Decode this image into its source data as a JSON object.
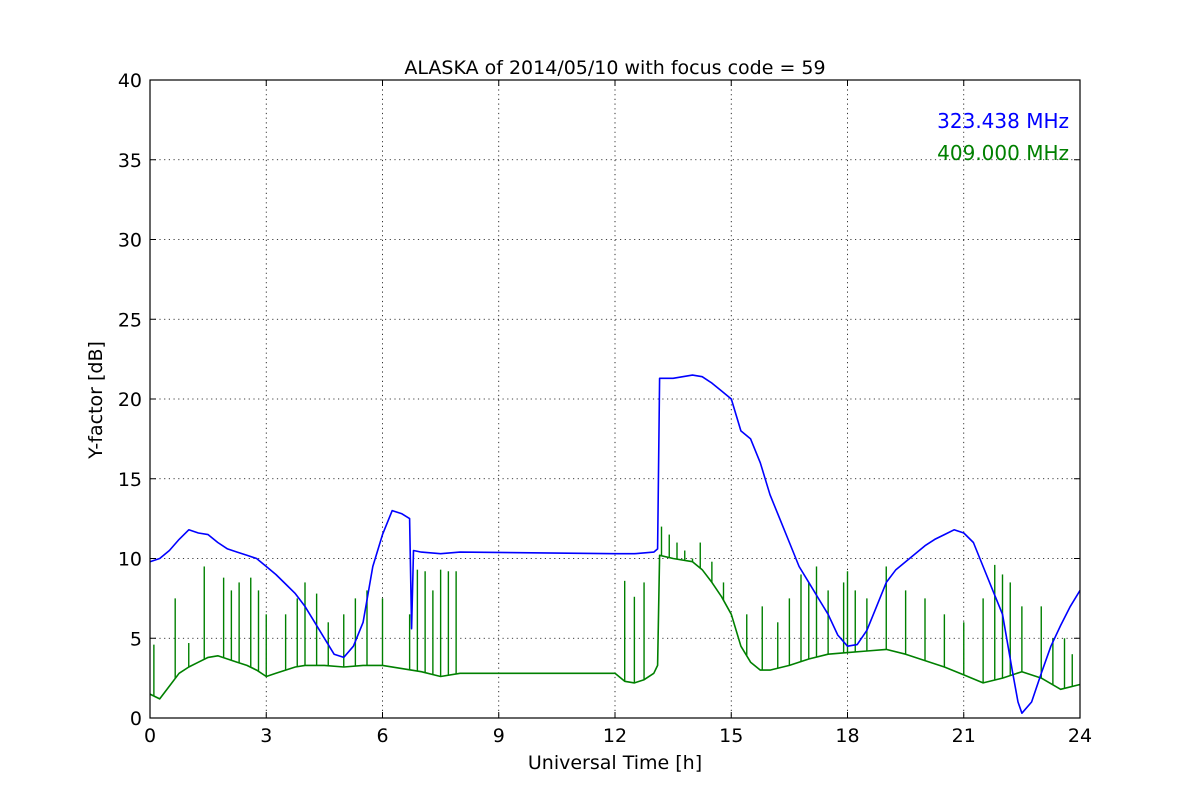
{
  "chart_data": {
    "type": "line",
    "title": "ALASKA of 2014/05/10 with focus code = 59",
    "xlabel": "Universal Time [h]",
    "ylabel": "Y-factor [dB]",
    "xlim": [
      0,
      24
    ],
    "ylim": [
      0,
      40
    ],
    "xticks": [
      0,
      3,
      6,
      9,
      12,
      15,
      18,
      21,
      24
    ],
    "xtick_labels": [
      "0",
      "3",
      "6",
      "9",
      "12",
      "15",
      "18",
      "21",
      "24"
    ],
    "yticks": [
      0,
      5,
      10,
      15,
      20,
      25,
      30,
      35,
      40
    ],
    "ytick_labels": [
      "0",
      "5",
      "10",
      "15",
      "20",
      "25",
      "30",
      "35",
      "40"
    ],
    "grid": true,
    "legend_position": "top-right",
    "series": [
      {
        "name": "323.438 MHz",
        "color": "#0000ff",
        "x": [
          0,
          0.25,
          0.5,
          0.75,
          1.0,
          1.25,
          1.5,
          1.75,
          2.0,
          2.25,
          2.5,
          2.75,
          3.0,
          3.25,
          3.5,
          3.75,
          4.0,
          4.25,
          4.5,
          4.75,
          5.0,
          5.25,
          5.5,
          5.75,
          6.0,
          6.25,
          6.5,
          6.7,
          6.75,
          6.8,
          7.0,
          7.5,
          8.0,
          12.0,
          12.5,
          13.0,
          13.1,
          13.15,
          13.5,
          14.0,
          14.25,
          14.5,
          14.75,
          15.0,
          15.25,
          15.5,
          15.75,
          16.0,
          16.25,
          16.5,
          16.75,
          17.0,
          17.25,
          17.5,
          17.75,
          18.0,
          18.25,
          18.5,
          18.75,
          19.0,
          19.25,
          19.5,
          19.75,
          20.0,
          20.25,
          20.5,
          20.75,
          21.0,
          21.25,
          21.5,
          21.75,
          22.0,
          22.25,
          22.4,
          22.5,
          22.75,
          23.0,
          23.25,
          23.5,
          23.75,
          24.0
        ],
        "values": [
          9.8,
          10.0,
          10.5,
          11.2,
          11.8,
          11.6,
          11.5,
          11.0,
          10.6,
          10.4,
          10.2,
          10.0,
          9.5,
          9.0,
          8.4,
          7.8,
          7.0,
          6.0,
          5.0,
          4.0,
          3.8,
          4.5,
          6.0,
          9.5,
          11.5,
          13.0,
          12.8,
          12.5,
          5.6,
          10.5,
          10.4,
          10.3,
          10.4,
          10.3,
          10.3,
          10.4,
          10.6,
          21.3,
          21.3,
          21.5,
          21.4,
          21.0,
          20.5,
          20.0,
          18.0,
          17.5,
          16.0,
          14.0,
          12.5,
          11.0,
          9.5,
          8.5,
          7.5,
          6.5,
          5.2,
          4.5,
          4.6,
          5.5,
          7.0,
          8.5,
          9.3,
          9.8,
          10.3,
          10.8,
          11.2,
          11.5,
          11.8,
          11.6,
          11.0,
          9.5,
          8.0,
          6.5,
          3.0,
          1.0,
          0.3,
          1.0,
          2.8,
          4.5,
          5.8,
          7.0,
          8.0
        ]
      },
      {
        "name": "409.000 MHz",
        "color": "#008000",
        "x": [
          0,
          0.25,
          0.5,
          0.75,
          1.0,
          1.25,
          1.5,
          1.75,
          2.0,
          2.25,
          2.5,
          2.75,
          3.0,
          3.25,
          3.5,
          3.75,
          4.0,
          4.5,
          5.0,
          5.5,
          6.0,
          6.5,
          7.0,
          7.5,
          8.0,
          12.0,
          12.25,
          12.5,
          12.75,
          13.0,
          13.1,
          13.15,
          13.5,
          14.0,
          14.25,
          14.5,
          14.75,
          15.0,
          15.25,
          15.5,
          15.75,
          16.0,
          16.5,
          17.0,
          17.5,
          18.0,
          18.5,
          19.0,
          19.5,
          20.0,
          20.5,
          21.0,
          21.5,
          22.0,
          22.5,
          23.0,
          23.5,
          24.0
        ],
        "values": [
          1.5,
          1.2,
          2.0,
          2.8,
          3.2,
          3.5,
          3.8,
          3.9,
          3.7,
          3.5,
          3.3,
          3.0,
          2.6,
          2.8,
          3.0,
          3.2,
          3.3,
          3.3,
          3.2,
          3.3,
          3.3,
          3.1,
          2.9,
          2.6,
          2.8,
          2.8,
          2.3,
          2.2,
          2.4,
          2.8,
          3.3,
          10.2,
          10.0,
          9.8,
          9.3,
          8.5,
          7.6,
          6.5,
          4.5,
          3.5,
          3.0,
          3.0,
          3.3,
          3.7,
          4.0,
          4.1,
          4.2,
          4.3,
          4.0,
          3.6,
          3.2,
          2.7,
          2.2,
          2.5,
          2.9,
          2.5,
          1.8,
          2.1
        ]
      }
    ],
    "spikes_409": [
      [
        0.1,
        4.6
      ],
      [
        0.65,
        7.5
      ],
      [
        1.0,
        4.7
      ],
      [
        1.4,
        9.5
      ],
      [
        1.9,
        8.8
      ],
      [
        2.1,
        8.0
      ],
      [
        2.3,
        8.5
      ],
      [
        2.6,
        8.8
      ],
      [
        2.8,
        8.0
      ],
      [
        3.0,
        6.5
      ],
      [
        3.5,
        6.5
      ],
      [
        3.8,
        7.5
      ],
      [
        4.0,
        8.5
      ],
      [
        4.3,
        7.8
      ],
      [
        4.6,
        6.0
      ],
      [
        5.0,
        6.5
      ],
      [
        5.3,
        7.5
      ],
      [
        5.6,
        8.0
      ],
      [
        6.0,
        7.5
      ],
      [
        6.7,
        6.5
      ],
      [
        6.9,
        9.3
      ],
      [
        7.1,
        9.2
      ],
      [
        7.3,
        8.0
      ],
      [
        7.5,
        9.3
      ],
      [
        7.7,
        9.2
      ],
      [
        7.9,
        9.2
      ],
      [
        12.25,
        8.6
      ],
      [
        12.5,
        7.6
      ],
      [
        12.75,
        8.5
      ],
      [
        13.2,
        12.0
      ],
      [
        13.4,
        11.5
      ],
      [
        13.6,
        11.0
      ],
      [
        13.8,
        10.5
      ],
      [
        14.0,
        10.0
      ],
      [
        14.2,
        11.0
      ],
      [
        14.5,
        9.8
      ],
      [
        14.8,
        8.5
      ],
      [
        15.0,
        6.5
      ],
      [
        15.4,
        6.5
      ],
      [
        15.8,
        7.0
      ],
      [
        16.2,
        6.0
      ],
      [
        16.5,
        7.5
      ],
      [
        16.8,
        9.0
      ],
      [
        17.0,
        8.5
      ],
      [
        17.2,
        9.5
      ],
      [
        17.5,
        8.0
      ],
      [
        17.9,
        8.5
      ],
      [
        18.0,
        9.2
      ],
      [
        18.2,
        8.0
      ],
      [
        18.5,
        7.5
      ],
      [
        19.0,
        9.5
      ],
      [
        19.5,
        8.0
      ],
      [
        20.0,
        7.5
      ],
      [
        20.5,
        6.5
      ],
      [
        21.0,
        6.0
      ],
      [
        21.5,
        7.5
      ],
      [
        21.8,
        9.6
      ],
      [
        22.0,
        9.0
      ],
      [
        22.2,
        8.5
      ],
      [
        22.5,
        7.0
      ],
      [
        23.0,
        7.0
      ],
      [
        23.3,
        5.0
      ],
      [
        23.6,
        5.0
      ],
      [
        23.8,
        4.0
      ]
    ]
  }
}
